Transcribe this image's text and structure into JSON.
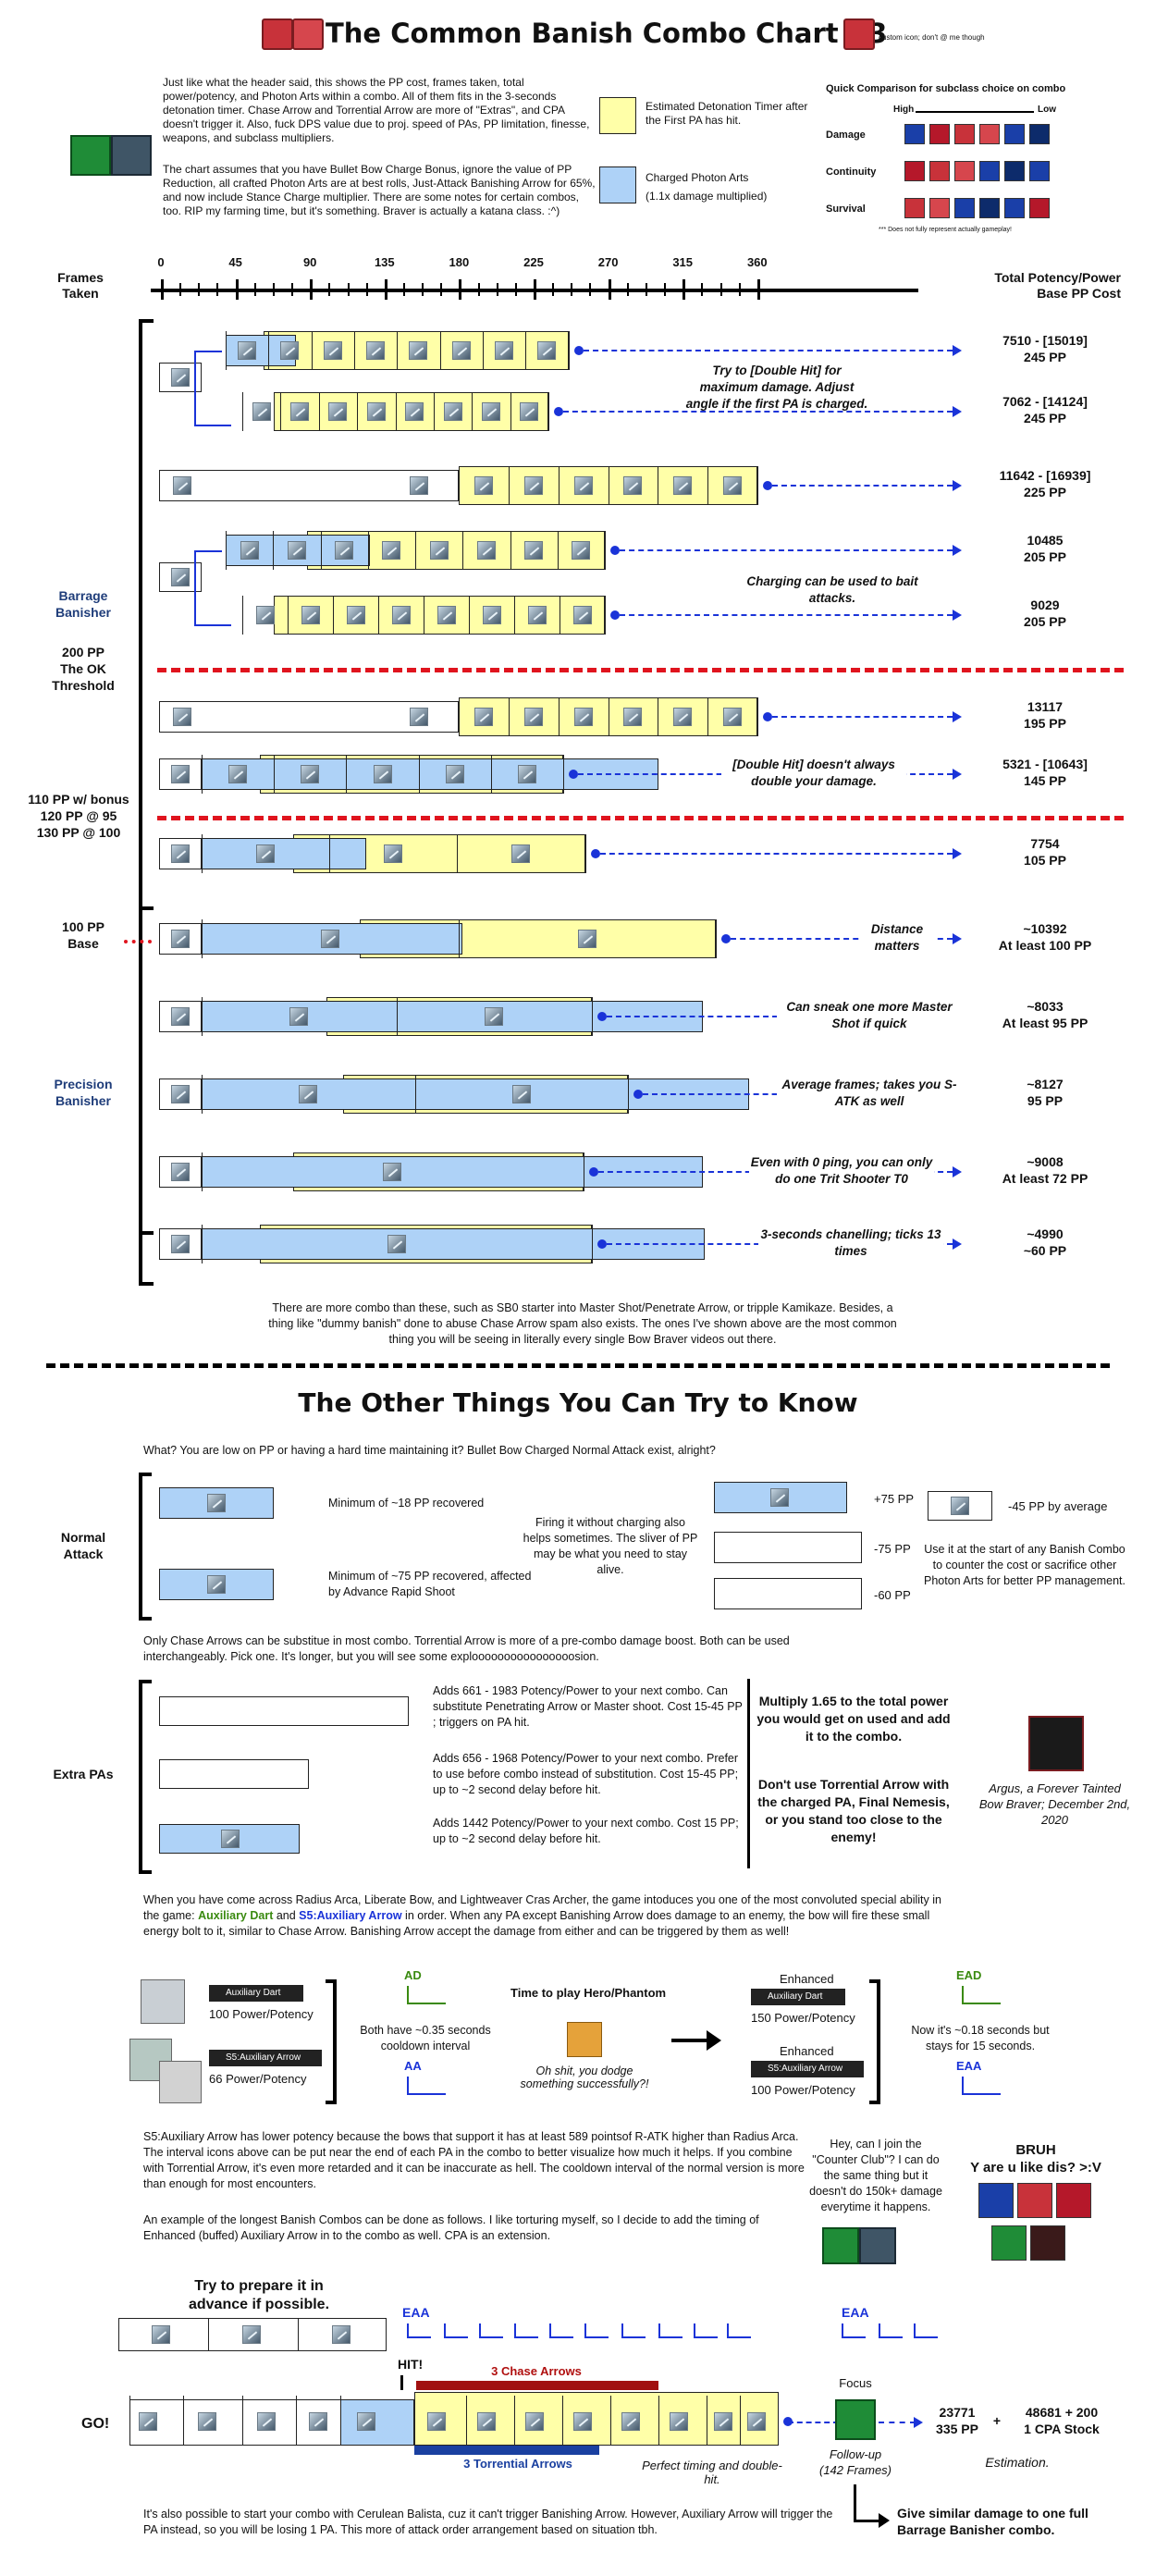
{
  "title": "The Common Banish Combo Chart V3",
  "custom_icon_note": "custom icon; don't @ me though",
  "intro": {
    "p1": "Just like what the header said, this shows the PP cost, frames taken, total power/potency, and Photon Arts within a combo. All of them fits in the 3-seconds detonation timer. Chase Arrow and Torrential Arrow are more of \"Extras\", and CPA doesn't trigger it. Also, fuck DPS value due to proj. speed of PAs, PP limitation, finesse, weapons, and subclass multipliers.",
    "p2": "The chart assumes that you have Bullet Bow Charge Bonus, ignore the value of PP Reduction, all crafted Photon Arts are at best rolls, Just-Attack Banishing Arrow for 65%, and now include Stance Charge multiplier. There are some notes for certain combos, too. RIP my farming time, but it's something. Braver is actually a katana class. :^)"
  },
  "legend": {
    "yellow": "Estimated Detonation Timer after the First PA has hit.",
    "blue": "Charged Photon Arts",
    "blue_sub": "(1.1x damage multiplied)",
    "colors": {
      "yellow": "#ffffa8",
      "blue": "#aed2f7",
      "red": "#e0141e",
      "arrow": "#1a33d8"
    }
  },
  "comparison": {
    "title": "Quick Comparison for subclass choice on combo",
    "high": "High",
    "low": "Low",
    "rows": [
      "Damage",
      "Continuity",
      "Survival"
    ],
    "footnote": "*** Does not fully represent actually gameplay!"
  },
  "axis": {
    "frames_label_1": "Frames",
    "frames_label_2": "Taken",
    "ticks": [
      "0",
      "45",
      "90",
      "135",
      "180",
      "225",
      "270",
      "315",
      "360"
    ],
    "total_1": "Total Potency/Power",
    "total_2": "Base PP Cost"
  },
  "groups": {
    "barrage_1": "Barrage",
    "barrage_2": "Banisher",
    "ok_1": "200 PP",
    "ok_2": "The OK",
    "ok_3": "Threshold",
    "bonus_1": "110 PP w/ bonus",
    "bonus_2": "120 PP @ 95",
    "bonus_3": "130 PP @ 100",
    "base_1": "100 PP",
    "base_2": "Base",
    "precision_1": "Precision",
    "precision_2": "Banisher"
  },
  "combos": [
    {
      "power": "7510 - [15019]",
      "pp": "245 PP",
      "note": "Try to [Double Hit] for maximum damage. Adjust angle if the first PA is charged."
    },
    {
      "power": "7062 - [14124]",
      "pp": "245 PP",
      "note": ""
    },
    {
      "power": "11642 - [16939]",
      "pp": "225 PP",
      "note": ""
    },
    {
      "power": "10485",
      "pp": "205 PP",
      "note": "Charging can be used to bait attacks."
    },
    {
      "power": "9029",
      "pp": "205 PP",
      "note": ""
    },
    {
      "power": "13117",
      "pp": "195 PP",
      "note": ""
    },
    {
      "power": "5321 - [10643]",
      "pp": "145 PP",
      "note": "[Double Hit] doesn't always double your damage."
    },
    {
      "power": "7754",
      "pp": "105 PP",
      "note": ""
    },
    {
      "power": "~10392",
      "pp": "At least 100 PP",
      "note": "Distance matters"
    },
    {
      "power": "~8033",
      "pp": "At least 95 PP",
      "note": "Can sneak one more Master Shot if quick"
    },
    {
      "power": "~8127",
      "pp": "95 PP",
      "note": "Average frames; takes you S-ATK as well"
    },
    {
      "power": "~9008",
      "pp": "At least 72 PP",
      "note": "Even with 0 ping, you can only do one Trit Shooter T0"
    },
    {
      "power": "~4990",
      "pp": "~60 PP",
      "note": "3-seconds chanelling; ticks 13 times"
    }
  ],
  "more_combos": "There are more combo than these, such as SB0 starter into Master Shot/Penetrate Arrow, or tripple Kamikaze. Besides, a thing like \"dummy banish\" done to abuse Chase Arrow spam also exists. The ones I've shown above are the most common thing you will be seeing in literally every single Bow Braver videos out there.",
  "section2_title": "The Other Things You Can Try to Know",
  "low_pp": "What? You are low on PP or having a hard time maintaining it? Bullet Bow Charged Normal Attack exist, alright?",
  "normal_attack": {
    "label_1": "Normal",
    "label_2": "Attack",
    "min18": "Minimum of ~18 PP recovered",
    "min75": "Minimum of ~75 PP recovered, affected by Advance Rapid Shoot",
    "firing": "Firing it without charging also helps sometimes. The sliver of PP may be what you need to stay alive.",
    "plus75": "+75 PP",
    "minus75": "-75 PP",
    "minus60": "-60 PP",
    "minus45": "-45 PP by average",
    "use_it": "Use it at the start of any Banish Combo to counter the cost or sacrifice other Photon Arts for better PP management."
  },
  "chase_note": "Only Chase Arrows can be substitue in most combo. Torrential Arrow is more of a pre-combo damage boost. Both can be used interchangeably. Pick one. It's longer, but you will see some exploooooooooooooooosion.",
  "extra": {
    "label": "Extra PAs",
    "e1": "Adds 661 - 1983 Potency/Power to your next combo. Can substitute Penetrating Arrow or Master shoot. Cost 15-45 PP ; triggers on PA hit.",
    "e2": "Adds 656 - 1968 Potency/Power to your next combo. Prefer to use before combo instead of substitution. Cost 15-45 PP; up to ~2 second delay before hit.",
    "e3": "Adds 1442 Potency/Power to your next combo. Cost 15 PP; up to ~2 second delay before hit.",
    "multiply": "Multiply 1.65 to the total power you would get on used and add it to the combo.",
    "dont": "Don't use Torrential Arrow with the charged PA, Final Nemesis, or you stand too close to the enemy!",
    "argus": "Argus, a Forever Tainted Bow Braver; December 2nd, 2020"
  },
  "aux": {
    "intro_1": "When you have come across Radius Arca, Liberate Bow, and Lightweaver Cras Archer, the game intoduces you one of the most convoluted special ability in the game: ",
    "auxdart": "Auxiliary Dart",
    "and": " and ",
    "s5aux": "S5:Auxiliary Arrow",
    "intro_2": " in order. When any PA except Banishing Arrow does damage to an enemy, the bow will fire these small energy bolt to it, similar to Chase Arrow. Banishing Arrow accept the damage from either and can be triggered by them as well!",
    "tag_dart": "Auxiliary Dart",
    "tag_arrow": "S5:Auxiliary Arrow",
    "dart_power": "100 Power/Potency",
    "arrow_power": "66 Power/Potency",
    "ad": "AD",
    "aa": "AA",
    "cooldown": "Both have ~0.35 seconds cooldown interval",
    "hero": "Time to play Hero/Phantom",
    "dodge": "Oh shit, you dodge something successfully?!",
    "enhanced": "Enhanced",
    "enh_dart_power": "150 Power/Potency",
    "enh_arrow_power": "100 Power/Potency",
    "ead": "EAD",
    "eaa": "EAA",
    "now": "Now it's ~0.18 seconds but stays for 15 seconds.",
    "s5_note": "S5:Auxiliary Arrow has lower potency because the bows that support it has at least 589 pointsof R-ATK higher than Radius Arca. The interval icons above can be put near the end of each PA in the combo to better visualize how much it helps. If you combine with Torrential Arrow, it's even more retarded and it can be inaccurate as hell. The cooldown interval of the normal version is more than enough for most encounters.",
    "example": "An example of the longest Banish Combos can be done as follows. I like torturing myself, so I decide to add the timing of Enhanced (buffed) Auxiliary Arrow in to the combo as well. CPA is an extension.",
    "counter": "Hey, can I join the \"Counter Club\"? I can do the same thing but it doesn't do 150k+ damage everytime it happens.",
    "bruh_1": "BRUH",
    "bruh_2": "Y are u like dis? >:V"
  },
  "final": {
    "prepare": "Try to prepare it in advance if possible.",
    "eaa": "EAA",
    "hit": "HIT!",
    "chase": "3 Chase Arrows",
    "torrential": "3 Torrential Arrows",
    "go": "GO!",
    "perfect": "Perfect timing and double-hit.",
    "focus": "Focus",
    "followup_1": "Follow-up",
    "followup_2": "(142 Frames)",
    "power": "23771",
    "pp": "335 PP",
    "plus": "+",
    "cpa": "48681 + 200",
    "cpa2": "1 CPA Stock",
    "estimation": "Estimation.",
    "give": "Give similar damage to one full Barrage Banisher combo.",
    "cerulean": "It's also possible to start your combo with Cerulean Balista, cuz it can't trigger Banishing Arrow. However, Auxiliary Arrow will trigger the PA instead, so you will be losing 1 PA. This more of attack order arrangement based on situation tbh."
  }
}
